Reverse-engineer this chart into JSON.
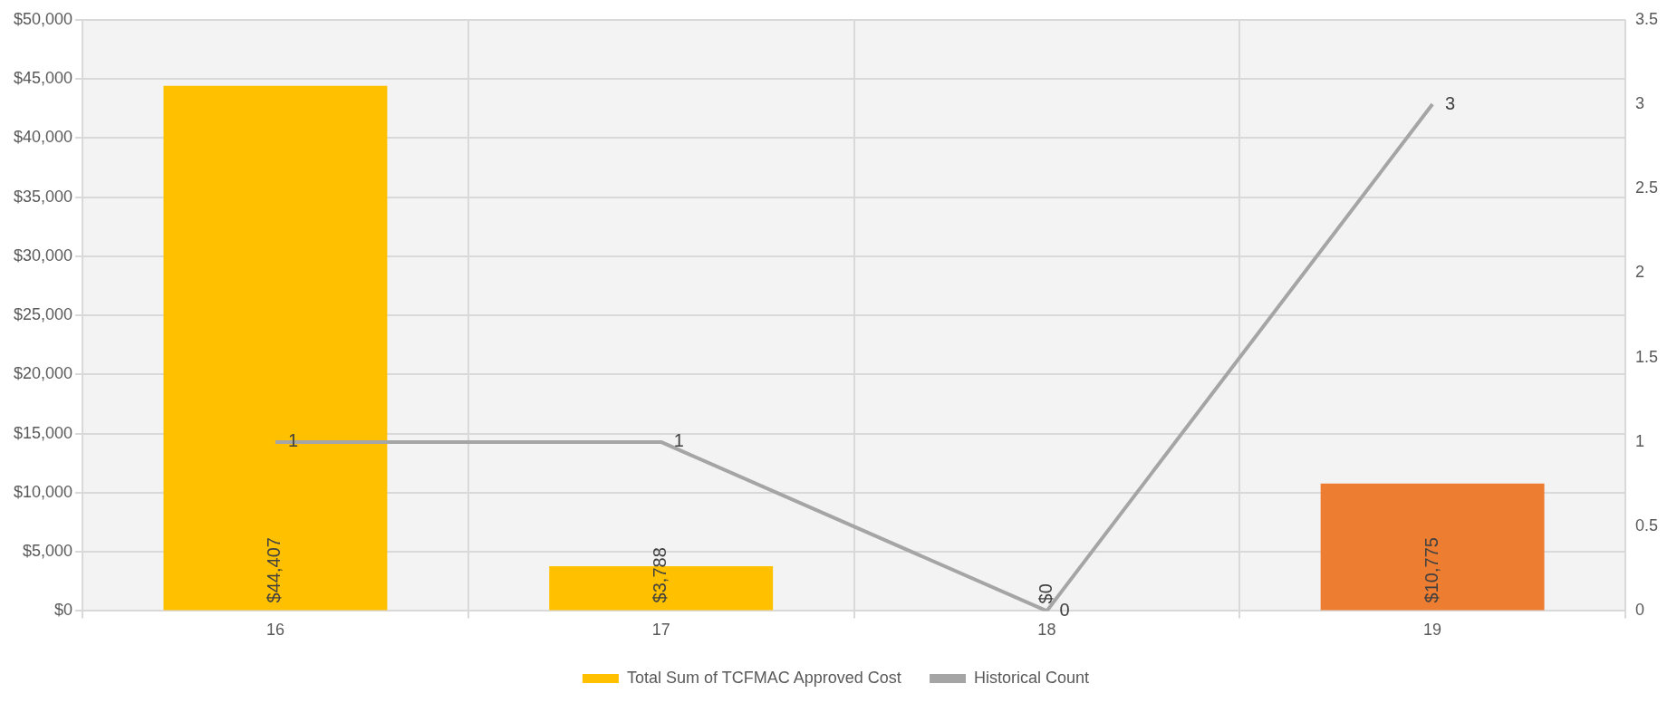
{
  "chart_data": {
    "type": "bar",
    "categories": [
      "16",
      "17",
      "18",
      "19"
    ],
    "series": [
      {
        "name": "Total Sum of TCFMAC Approved Cost",
        "color": "#ffc000",
        "colors": [
          "#ffc000",
          "#ffc000",
          "#ffc000",
          "#ed7d31"
        ],
        "values": [
          44407,
          3788,
          0,
          10775
        ],
        "value_labels": [
          "$44,407",
          "$3,788",
          "$0",
          "$10,775"
        ]
      },
      {
        "name": "Historical Count",
        "type": "line",
        "axis": "y2",
        "color": "#a5a5a5",
        "values": [
          1,
          1,
          0,
          3
        ],
        "value_labels": [
          "1",
          "1",
          "0",
          "3"
        ]
      }
    ],
    "ylim": [
      0,
      50000
    ],
    "yticks": [
      {
        "value": 0,
        "label": "$0"
      },
      {
        "value": 5000,
        "label": "$5,000"
      },
      {
        "value": 10000,
        "label": "$10,000"
      },
      {
        "value": 15000,
        "label": "$15,000"
      },
      {
        "value": 20000,
        "label": "$20,000"
      },
      {
        "value": 25000,
        "label": "$25,000"
      },
      {
        "value": 30000,
        "label": "$30,000"
      },
      {
        "value": 35000,
        "label": "$35,000"
      },
      {
        "value": 40000,
        "label": "$40,000"
      },
      {
        "value": 45000,
        "label": "$45,000"
      },
      {
        "value": 50000,
        "label": "$50,000"
      }
    ],
    "y2lim": [
      0,
      3.5
    ],
    "y2ticks": [
      0,
      0.5,
      1,
      1.5,
      2,
      2.5,
      3,
      3.5
    ],
    "grid": true,
    "legend": "bottom",
    "marker": "none"
  }
}
